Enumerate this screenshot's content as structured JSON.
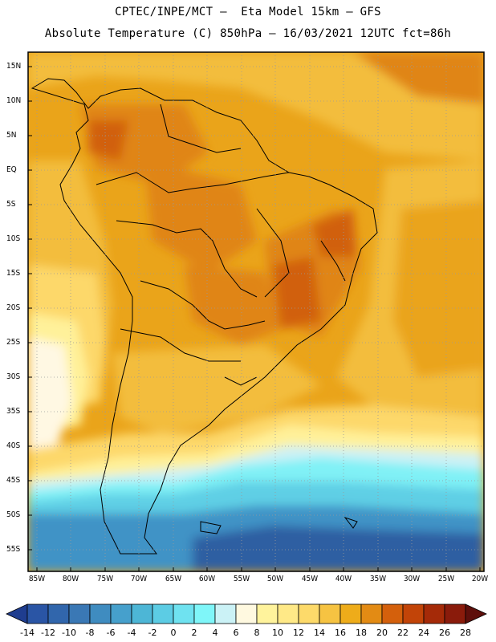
{
  "header": {
    "line1": "CPTEC/INPE/MCT –  Eta Model 15km – GFS",
    "line2": "Absolute Temperature (C) 850hPa – 16/03/2021 12UTC fct=86h"
  },
  "map": {
    "y_ticks": [
      "15N",
      "10N",
      "5N",
      "EQ",
      "5S",
      "10S",
      "15S",
      "20S",
      "25S",
      "30S",
      "35S",
      "40S",
      "45S",
      "50S",
      "55S"
    ],
    "x_ticks": [
      "85W",
      "80W",
      "75W",
      "70W",
      "65W",
      "60W",
      "55W",
      "50W",
      "45W",
      "40W",
      "35W",
      "30W",
      "25W",
      "20W"
    ],
    "lat_range": [
      17,
      -58
    ],
    "lon_range": [
      -86,
      -20
    ]
  },
  "colorbar": {
    "labels": [
      "-14",
      "-12",
      "-10",
      "-8",
      "-6",
      "-4",
      "-2",
      "0",
      "2",
      "4",
      "6",
      "8",
      "10",
      "12",
      "14",
      "16",
      "18",
      "20",
      "22",
      "24",
      "26",
      "28"
    ],
    "colors": [
      "#1f3d8f",
      "#2a55a5",
      "#3166ac",
      "#3a78b5",
      "#3f8cc0",
      "#46a0cc",
      "#4db6d6",
      "#5ccce4",
      "#6fe2f0",
      "#7ff6f9",
      "#cbf2f6",
      "#fff9e0",
      "#fff39c",
      "#ffe987",
      "#fdda6a",
      "#f6c342",
      "#eeac1a",
      "#e38b14",
      "#d4600c",
      "#c24408",
      "#a52a08",
      "#8a1b0b",
      "#5e0f0b"
    ]
  },
  "legend_colors": {
    "cold_deep": "#2f5fa2",
    "cold_mid": "#3f93c6",
    "cold_light": "#5fcfe5",
    "cyan": "#80f1f6",
    "pale_cyan": "#cdf1f5",
    "cream": "#fff8e3",
    "pale_yellow": "#fff19a",
    "yellow": "#fdd86a",
    "gold": "#f3bd3c",
    "orange": "#eaa41a",
    "dark_orange": "#e08512",
    "red_orange": "#d1600c"
  }
}
